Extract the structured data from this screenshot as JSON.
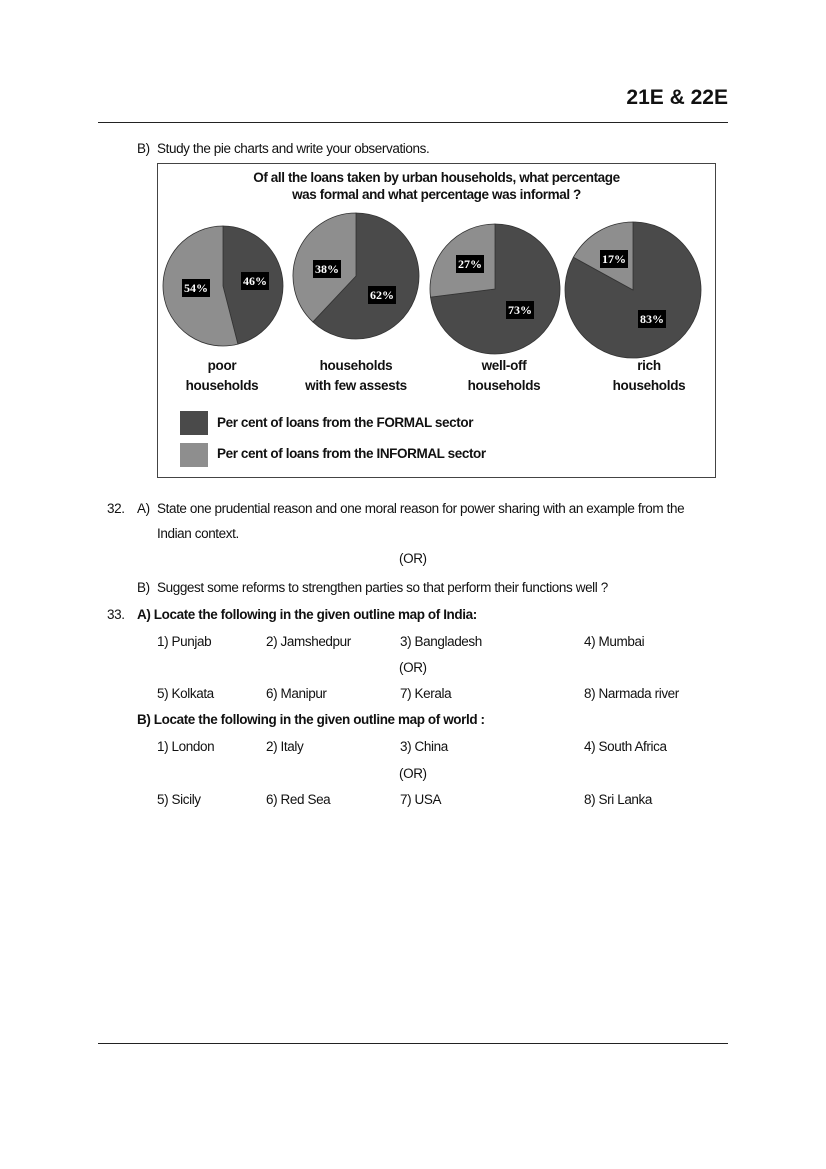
{
  "header": {
    "code": "21E & 22E"
  },
  "q31b": {
    "label": "B)",
    "text": "Study the pie charts and write your observations."
  },
  "chart_data": {
    "type": "pie",
    "title_line1": "Of all the loans taken by urban households, what percentage",
    "title_line2": "was formal and what percentage was informal ?",
    "pies": [
      {
        "caption1": "poor",
        "caption2": "households",
        "formal": 46,
        "informal": 54,
        "formal_label": "46%",
        "informal_label": "54%"
      },
      {
        "caption1": "households",
        "caption2": "with few assests",
        "formal": 62,
        "informal": 38,
        "formal_label": "62%",
        "informal_label": "38%"
      },
      {
        "caption1": "well-off",
        "caption2": "households",
        "formal": 73,
        "informal": 27,
        "formal_label": "73%",
        "informal_label": "27%"
      },
      {
        "caption1": "rich",
        "caption2": "households",
        "formal": 83,
        "informal": 17,
        "formal_label": "83%",
        "informal_label": "17%"
      }
    ],
    "legend": [
      {
        "name": "Per cent of loans from the FORMAL sector",
        "color": "#4a4a4a"
      },
      {
        "name": "Per cent of loans from the INFORMAL sector",
        "color": "#8e8e8e"
      }
    ],
    "legend_position": "bottom-left"
  },
  "q32": {
    "number": "32.",
    "a_label": "A)",
    "a_line1": "State one prudential reason and one moral reason for power sharing with an example from the",
    "a_line2": "Indian context.",
    "or": "(OR)",
    "b_label": "B)",
    "b_text": "Suggest some reforms to strengthen parties so that perform their functions well ?"
  },
  "q33": {
    "number": "33.",
    "a_heading": "A) Locate the following in the given outline map of India:",
    "a_row1": [
      "1) Punjab",
      "2) Jamshedpur",
      "3) Bangladesh",
      "4) Mumbai"
    ],
    "a_or": "(OR)",
    "a_row2": [
      "5) Kolkata",
      "6) Manipur",
      "7) Kerala",
      "8) Narmada river"
    ],
    "b_heading": "B) Locate the following in the given outline map of world :",
    "b_row1": [
      "1) London",
      "2) Italy",
      "3) China",
      "4) South Africa"
    ],
    "b_or": "(OR)",
    "b_row2": [
      "5) Sicily",
      "6) Red Sea",
      "7) USA",
      "8) Sri Lanka"
    ]
  }
}
